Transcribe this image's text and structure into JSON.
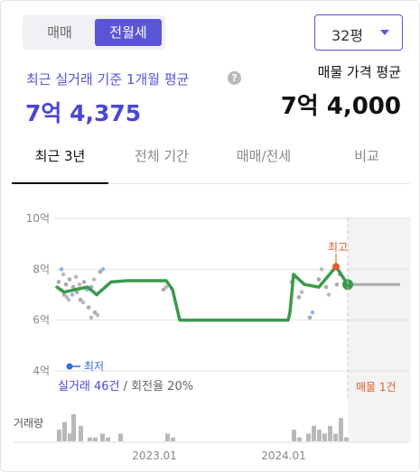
{
  "trade_toggle": {
    "options": [
      "매매",
      "전월세"
    ],
    "selected": "전월세"
  },
  "size_select": {
    "value": "32평"
  },
  "recent_avg": {
    "label": "최근 실거래 기준 1개월 평균",
    "value": "7억 4,375"
  },
  "listing_avg": {
    "label": "매물 가격 평균",
    "value": "7억 4,000"
  },
  "tabs": [
    {
      "label": "최근 3년",
      "active": true
    },
    {
      "label": "전체 기간",
      "active": false
    },
    {
      "label": "매매/전세",
      "active": false
    },
    {
      "label": "비교",
      "active": false
    }
  ],
  "chart_data": {
    "type": "line",
    "y_ticks": [
      "10억",
      "8억",
      "6억",
      "4억"
    ],
    "ylim": [
      4,
      10
    ],
    "x_ticks": [
      "2023.01",
      "2024.01"
    ],
    "grid": true,
    "min_marker": {
      "label": "최저"
    },
    "max_marker": {
      "label": "최고",
      "value": 8.1
    },
    "trade_summary": {
      "count_text": "실거래 46건",
      "turnover_text": "회전율 20%"
    },
    "listing_note": "매물 1건",
    "volume_label": "거래량",
    "series": [
      {
        "values": [
          7.3,
          7.1,
          7.2,
          7.3,
          7.0,
          7.5,
          7.55,
          7.55,
          7.55,
          7.55,
          7.2,
          6.0,
          6.0,
          6.0,
          6.0,
          6.0,
          6.0,
          6.0,
          6.0,
          6.0,
          6.3,
          7.8,
          7.4,
          7.3,
          8.1,
          7.4
        ]
      }
    ],
    "listing_price": 7.4,
    "scatter_points": [
      [
        7.5,
        8.0
      ],
      [
        7.2,
        7.8
      ],
      [
        7.0,
        6.9
      ],
      [
        7.4,
        6.8
      ],
      [
        7.6,
        7.0
      ],
      [
        7.3,
        7.7
      ],
      [
        7.1,
        7.4
      ],
      [
        6.8,
        6.7
      ],
      [
        7.5,
        7.2
      ],
      [
        6.5,
        6.1
      ],
      [
        7.3,
        7.6
      ],
      [
        6.3,
        6.2
      ],
      [
        7.9,
        8.0
      ],
      [
        7.2,
        7.3
      ],
      [
        7.5,
        7.7
      ],
      [
        6.9,
        7.1
      ],
      [
        6.1,
        6.3
      ],
      [
        7.6,
        8.0
      ],
      [
        7.3,
        7.0
      ],
      [
        7.4,
        7.8
      ]
    ],
    "volume_bars": [
      3,
      5,
      2,
      7,
      4,
      1,
      1,
      2,
      1,
      2,
      2,
      1,
      3,
      1,
      2,
      4,
      3,
      2,
      4,
      2,
      6,
      1
    ]
  }
}
